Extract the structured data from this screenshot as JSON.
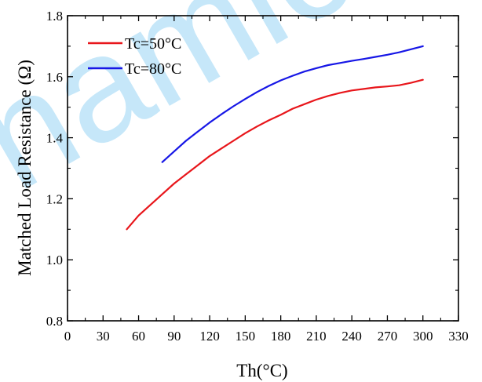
{
  "watermark": "onamic",
  "chart_data": {
    "type": "line",
    "xlabel": "Th(°C)",
    "ylabel": "Matched Load Resistance (Ω)",
    "xlim": [
      0,
      330
    ],
    "ylim": [
      0.8,
      1.8
    ],
    "xticks": [
      "0",
      "30",
      "60",
      "90",
      "120",
      "150",
      "180",
      "210",
      "240",
      "270",
      "300",
      "330"
    ],
    "yticks": [
      "0.8",
      "1.0",
      "1.2",
      "1.4",
      "1.6",
      "1.8"
    ],
    "grid": false,
    "legend_position": "top-left",
    "series": [
      {
        "name": "Tc=50°C",
        "color": "#e8161b",
        "x": [
          50,
          60,
          70,
          80,
          90,
          100,
          110,
          120,
          130,
          140,
          150,
          160,
          170,
          180,
          190,
          200,
          210,
          220,
          230,
          240,
          250,
          260,
          270,
          280,
          290,
          300
        ],
        "y": [
          1.1,
          1.145,
          1.18,
          1.215,
          1.25,
          1.28,
          1.31,
          1.34,
          1.365,
          1.39,
          1.415,
          1.437,
          1.457,
          1.475,
          1.495,
          1.51,
          1.525,
          1.537,
          1.547,
          1.555,
          1.56,
          1.565,
          1.568,
          1.572,
          1.58,
          1.59
        ]
      },
      {
        "name": "Tc=80°C",
        "color": "#1717e6",
        "x": [
          80,
          90,
          100,
          110,
          120,
          130,
          140,
          150,
          160,
          170,
          180,
          190,
          200,
          210,
          220,
          230,
          240,
          250,
          260,
          270,
          280,
          290,
          300
        ],
        "y": [
          1.32,
          1.355,
          1.39,
          1.42,
          1.45,
          1.477,
          1.503,
          1.527,
          1.55,
          1.57,
          1.588,
          1.603,
          1.617,
          1.628,
          1.638,
          1.645,
          1.652,
          1.658,
          1.665,
          1.672,
          1.68,
          1.69,
          1.7
        ]
      }
    ]
  }
}
